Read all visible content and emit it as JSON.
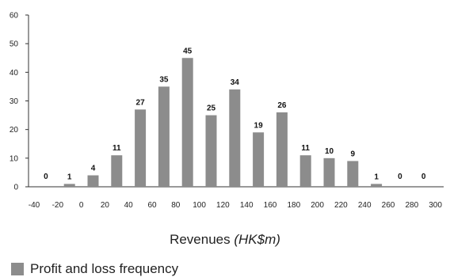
{
  "chart_data": {
    "type": "bar",
    "x_ticks": [
      "-40",
      "-20",
      "0",
      "20",
      "40",
      "60",
      "80",
      "100",
      "120",
      "140",
      "160",
      "180",
      "200",
      "220",
      "240",
      "260",
      "280",
      "300"
    ],
    "values": [
      0,
      1,
      4,
      11,
      27,
      35,
      45,
      25,
      34,
      19,
      26,
      11,
      10,
      9,
      1,
      0,
      0
    ],
    "data_labels": [
      "0",
      "1",
      "4",
      "11",
      "27",
      "35",
      "45",
      "25",
      "34",
      "19",
      "26",
      "11",
      "10",
      "9",
      "1",
      "0",
      "0"
    ],
    "y_ticks": [
      "0",
      "10",
      "20",
      "30",
      "40",
      "50",
      "60"
    ],
    "ylim": [
      0,
      60
    ],
    "xlabel": "Revenues",
    "xlabel_unit": "(HK$m)",
    "legend": {
      "label": "Profit and loss frequency",
      "placement": "bottom-left"
    },
    "bar_color": "#8c8c8c",
    "grid": false
  }
}
